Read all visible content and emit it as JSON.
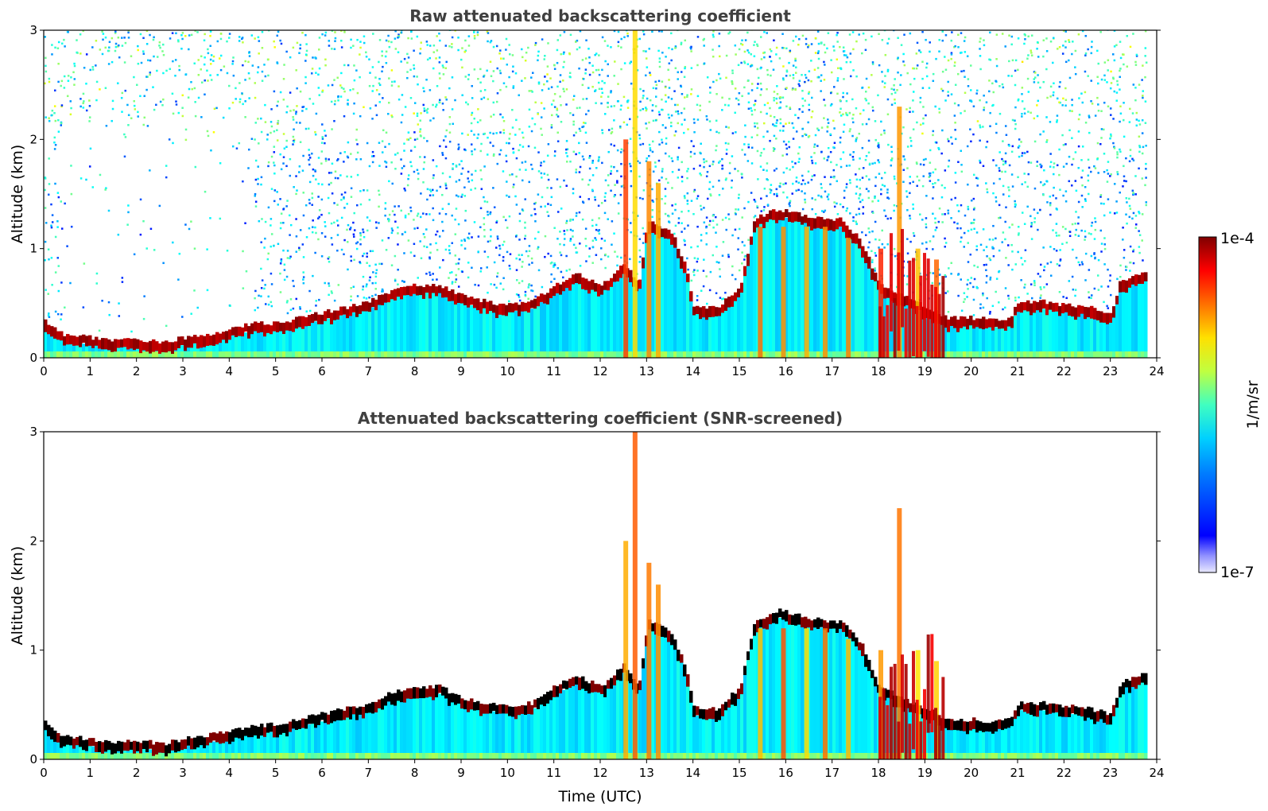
{
  "chart_data": [
    {
      "type": "heatmap",
      "title": "Raw attenuated backscattering coefficient",
      "xlabel": "",
      "ylabel": "Altitude (km)",
      "xlim": [
        0,
        24
      ],
      "ylim": [
        0,
        3
      ],
      "x_ticks": [
        "0",
        "1",
        "2",
        "3",
        "4",
        "5",
        "6",
        "7",
        "8",
        "9",
        "10",
        "11",
        "12",
        "13",
        "14",
        "15",
        "16",
        "17",
        "18",
        "19",
        "20",
        "21",
        "22",
        "23",
        "24"
      ],
      "y_ticks": [
        "0",
        "1",
        "2",
        "3"
      ],
      "data_end_time": 23.8,
      "layer_top_km": [
        [
          0.0,
          0.28
        ],
        [
          0.4,
          0.15
        ],
        [
          1.0,
          0.12
        ],
        [
          1.5,
          0.1
        ],
        [
          2.0,
          0.1
        ],
        [
          2.6,
          0.08
        ],
        [
          3.0,
          0.12
        ],
        [
          3.5,
          0.15
        ],
        [
          4.0,
          0.2
        ],
        [
          4.5,
          0.25
        ],
        [
          4.8,
          0.25
        ],
        [
          5.0,
          0.25
        ],
        [
          5.5,
          0.3
        ],
        [
          6.0,
          0.35
        ],
        [
          6.5,
          0.4
        ],
        [
          7.0,
          0.45
        ],
        [
          7.5,
          0.55
        ],
        [
          8.0,
          0.6
        ],
        [
          8.5,
          0.6
        ],
        [
          9.0,
          0.5
        ],
        [
          9.5,
          0.45
        ],
        [
          10.0,
          0.42
        ],
        [
          10.5,
          0.45
        ],
        [
          11.0,
          0.6
        ],
        [
          11.5,
          0.7
        ],
        [
          11.7,
          0.65
        ],
        [
          12.0,
          0.6
        ],
        [
          12.5,
          0.8
        ],
        [
          12.8,
          0.6
        ],
        [
          13.0,
          1.2
        ],
        [
          13.5,
          1.1
        ],
        [
          13.8,
          0.8
        ],
        [
          14.0,
          0.4
        ],
        [
          14.5,
          0.4
        ],
        [
          15.0,
          0.6
        ],
        [
          15.3,
          1.2
        ],
        [
          15.8,
          1.3
        ],
        [
          16.3,
          1.25
        ],
        [
          16.8,
          1.2
        ],
        [
          17.2,
          1.2
        ],
        [
          17.6,
          1.0
        ],
        [
          18.0,
          0.6
        ],
        [
          18.5,
          0.5
        ],
        [
          19.0,
          0.4
        ],
        [
          19.5,
          0.3
        ],
        [
          20.0,
          0.3
        ],
        [
          20.5,
          0.28
        ],
        [
          20.8,
          0.3
        ],
        [
          21.0,
          0.45
        ],
        [
          21.5,
          0.45
        ],
        [
          22.0,
          0.42
        ],
        [
          22.5,
          0.4
        ],
        [
          23.0,
          0.35
        ],
        [
          23.2,
          0.65
        ],
        [
          23.8,
          0.72
        ]
      ],
      "colorbar": {
        "min_label": "1e-7",
        "max_label": "1e-4",
        "label": "1/m/sr",
        "scale": "log"
      }
    },
    {
      "type": "heatmap",
      "title": "Attenuated backscattering coefficient (SNR-screened)",
      "xlabel": "Time (UTC)",
      "ylabel": "Altitude (km)",
      "xlim": [
        0,
        24
      ],
      "ylim": [
        0,
        3
      ],
      "x_ticks": [
        "0",
        "1",
        "2",
        "3",
        "4",
        "5",
        "6",
        "7",
        "8",
        "9",
        "10",
        "11",
        "12",
        "13",
        "14",
        "15",
        "16",
        "17",
        "18",
        "19",
        "20",
        "21",
        "22",
        "23",
        "24"
      ],
      "y_ticks": [
        "0",
        "1",
        "2",
        "3"
      ],
      "data_end_time": 23.8,
      "screened": true,
      "colorbar": {
        "min_label": "1e-7",
        "max_label": "1e-4",
        "label": "1/m/sr",
        "scale": "log"
      }
    }
  ],
  "colors": {
    "jet_low": "#00007f",
    "jet_high": "#7f0000",
    "background": "#ffffff",
    "title": "#404040"
  }
}
